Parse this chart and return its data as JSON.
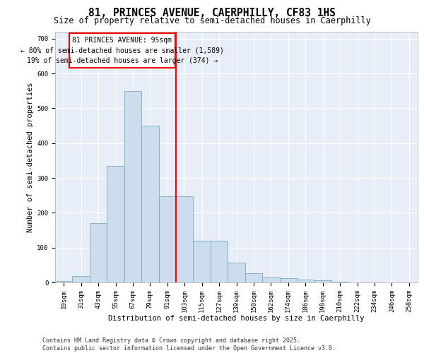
{
  "title_line1": "81, PRINCES AVENUE, CAERPHILLY, CF83 1HS",
  "title_line2": "Size of property relative to semi-detached houses in Caerphilly",
  "xlabel": "Distribution of semi-detached houses by size in Caerphilly",
  "ylabel": "Number of semi-detached properties",
  "categories": [
    "19sqm",
    "31sqm",
    "43sqm",
    "55sqm",
    "67sqm",
    "79sqm",
    "91sqm",
    "103sqm",
    "115sqm",
    "127sqm",
    "139sqm",
    "150sqm",
    "162sqm",
    "174sqm",
    "186sqm",
    "198sqm",
    "210sqm",
    "222sqm",
    "234sqm",
    "246sqm",
    "258sqm"
  ],
  "values": [
    5,
    18,
    170,
    335,
    550,
    450,
    248,
    248,
    120,
    120,
    57,
    27,
    15,
    12,
    8,
    7,
    2,
    0,
    0,
    0,
    0
  ],
  "bar_color": "#ccdded",
  "bar_edge_color": "#7aaabb",
  "highlight_line_index": 6,
  "annotation_title": "81 PRINCES AVENUE: 95sqm",
  "annotation_line2": "← 80% of semi-detached houses are smaller (1,589)",
  "annotation_line3": "19% of semi-detached houses are larger (374) →",
  "ylim": [
    0,
    720
  ],
  "yticks": [
    0,
    100,
    200,
    300,
    400,
    500,
    600,
    700
  ],
  "background_color": "#e8eef8",
  "footer_line1": "Contains HM Land Registry data © Crown copyright and database right 2025.",
  "footer_line2": "Contains public sector information licensed under the Open Government Licence v3.0.",
  "title_fontsize": 10.5,
  "subtitle_fontsize": 8.5,
  "axis_label_fontsize": 7.5,
  "tick_fontsize": 6.5,
  "annotation_fontsize": 7,
  "footer_fontsize": 6
}
